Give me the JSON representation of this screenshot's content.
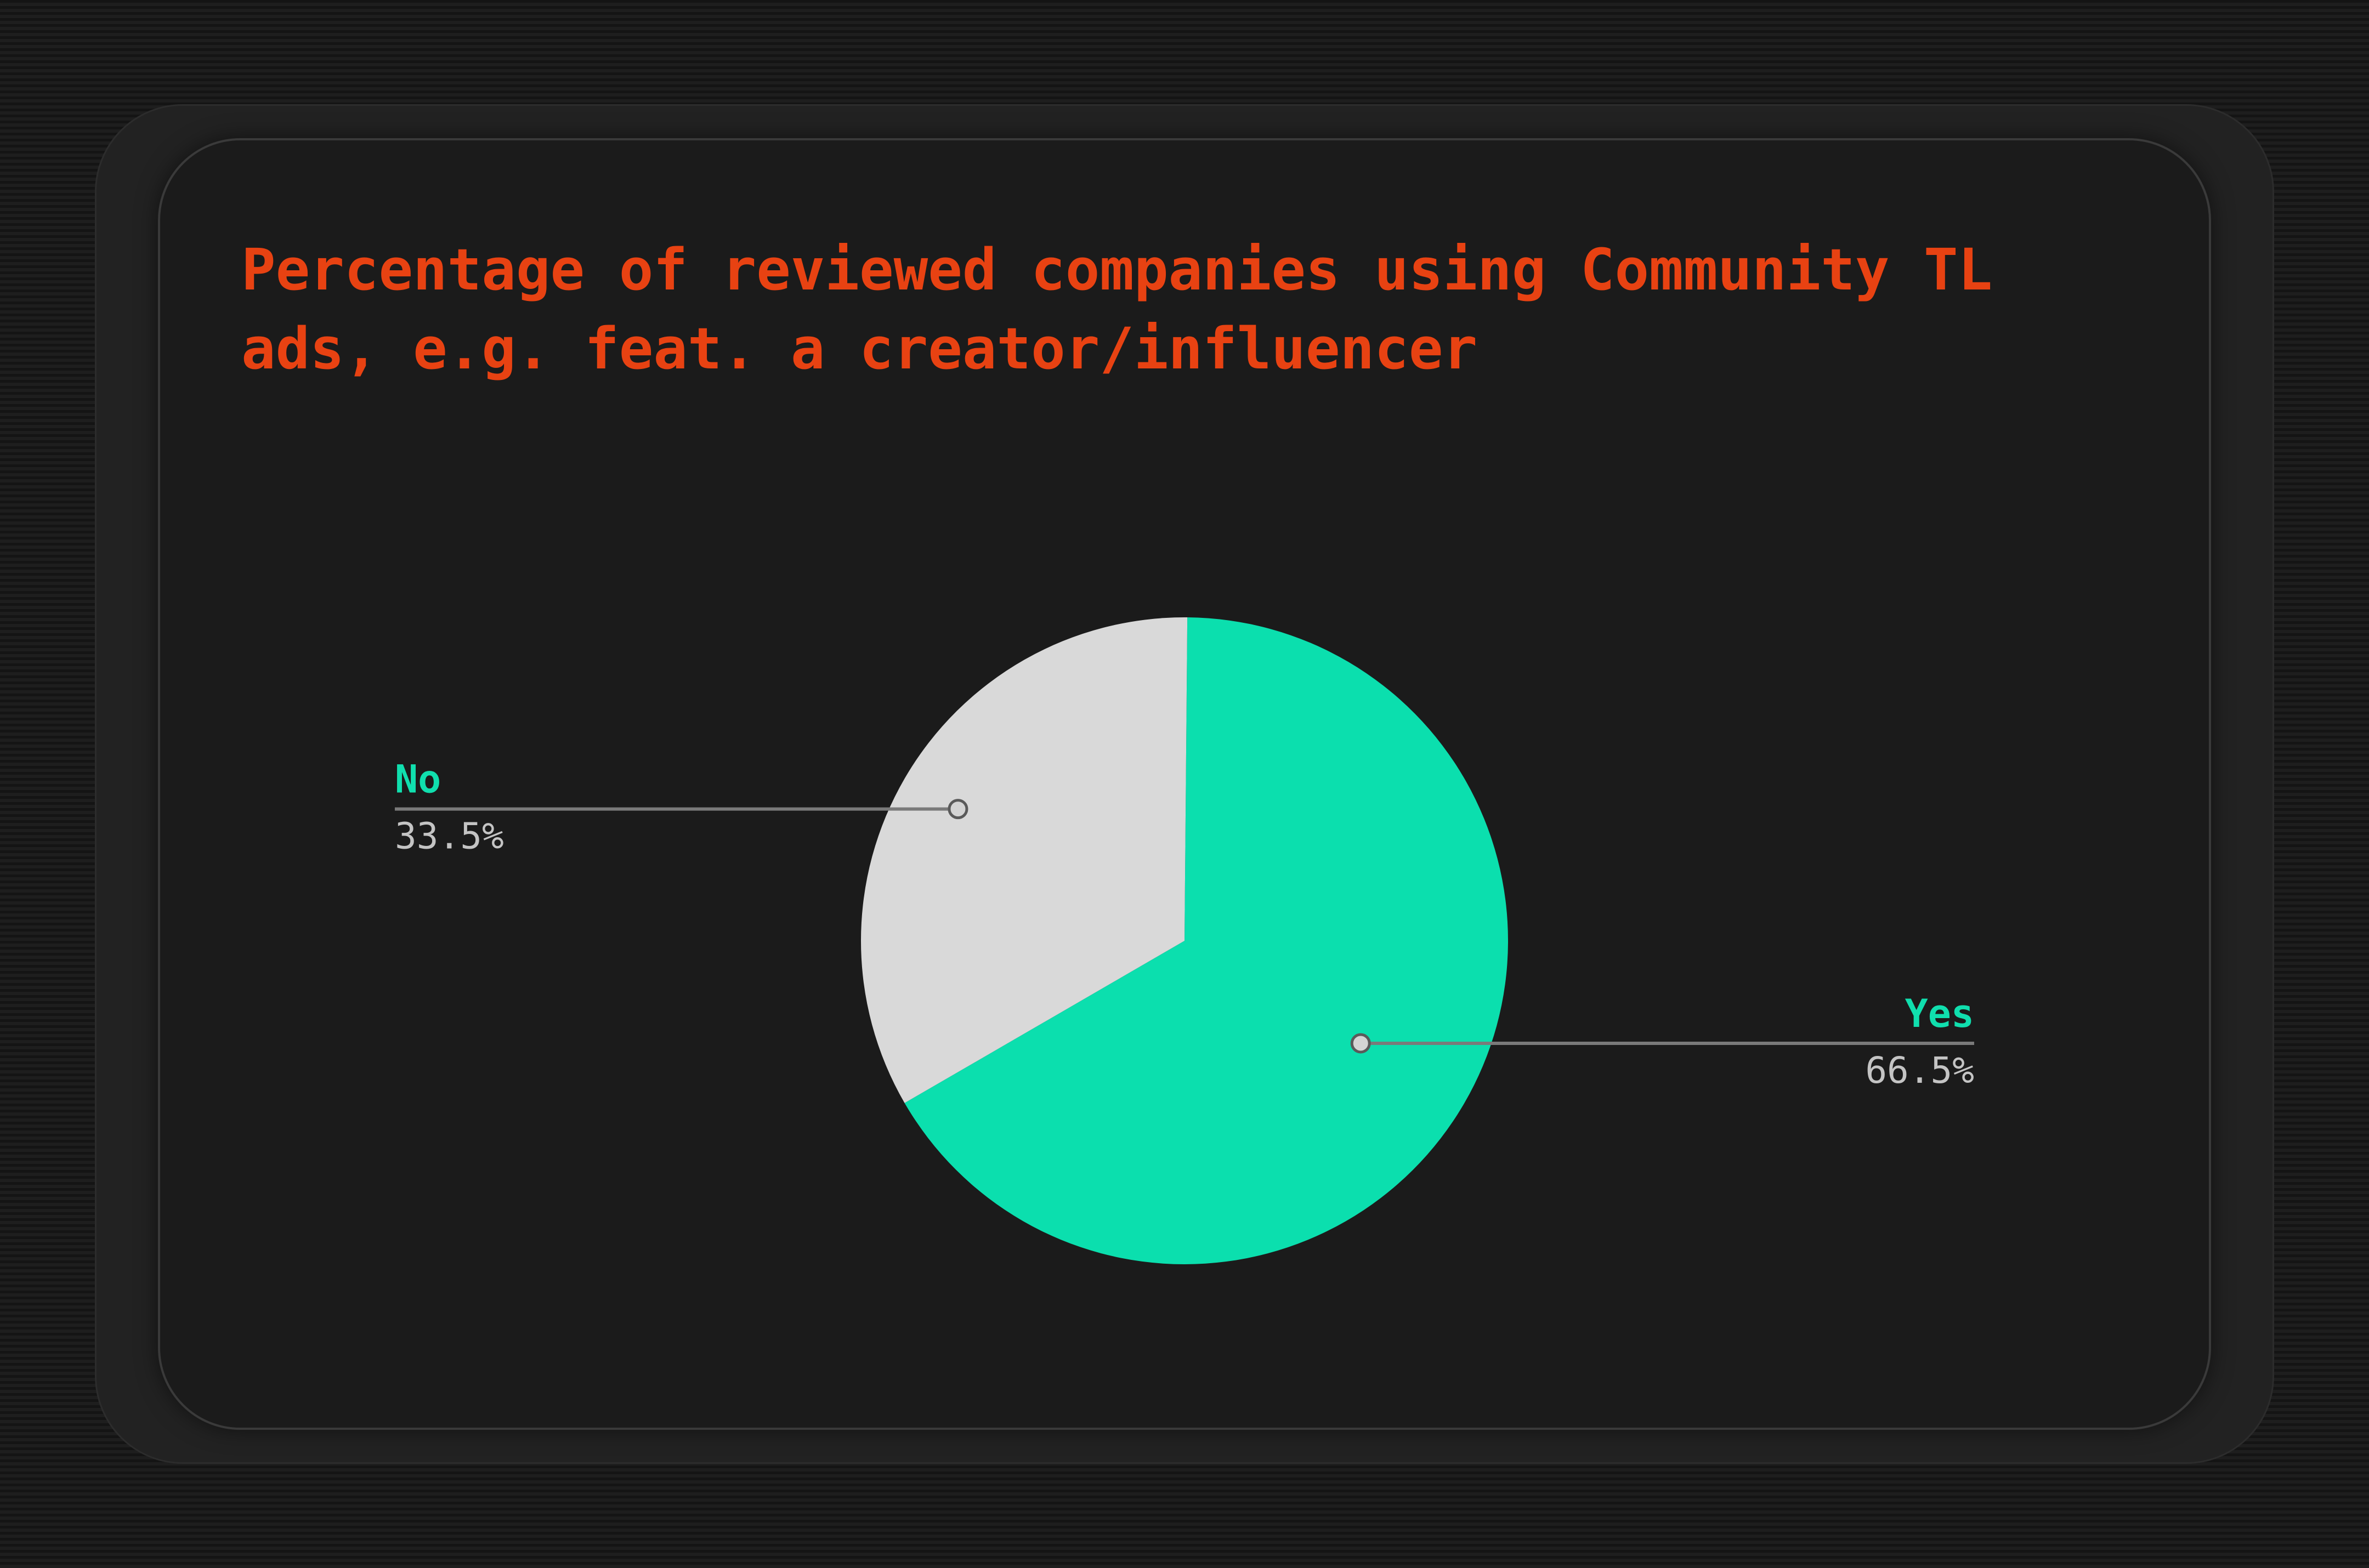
{
  "chart_data": {
    "type": "pie",
    "title": "Percentage of reviewed companies using Community TL ads, e.g. feat. a creator/influencer",
    "slices": [
      {
        "name": "Yes",
        "value": 66.5,
        "label": "66.5%",
        "color": "#0bdfae"
      },
      {
        "name": "No",
        "value": 33.5,
        "label": "33.5%",
        "color": "#d9d9d9"
      }
    ],
    "legend": "none",
    "data_labels": "outside-with-leader-lines"
  },
  "colors": {
    "title": "#e84212",
    "label_name": "#10dfae",
    "label_value": "#c4c4c4",
    "leader_line": "#7a7a7a",
    "card_background": "#1b1b1b"
  }
}
